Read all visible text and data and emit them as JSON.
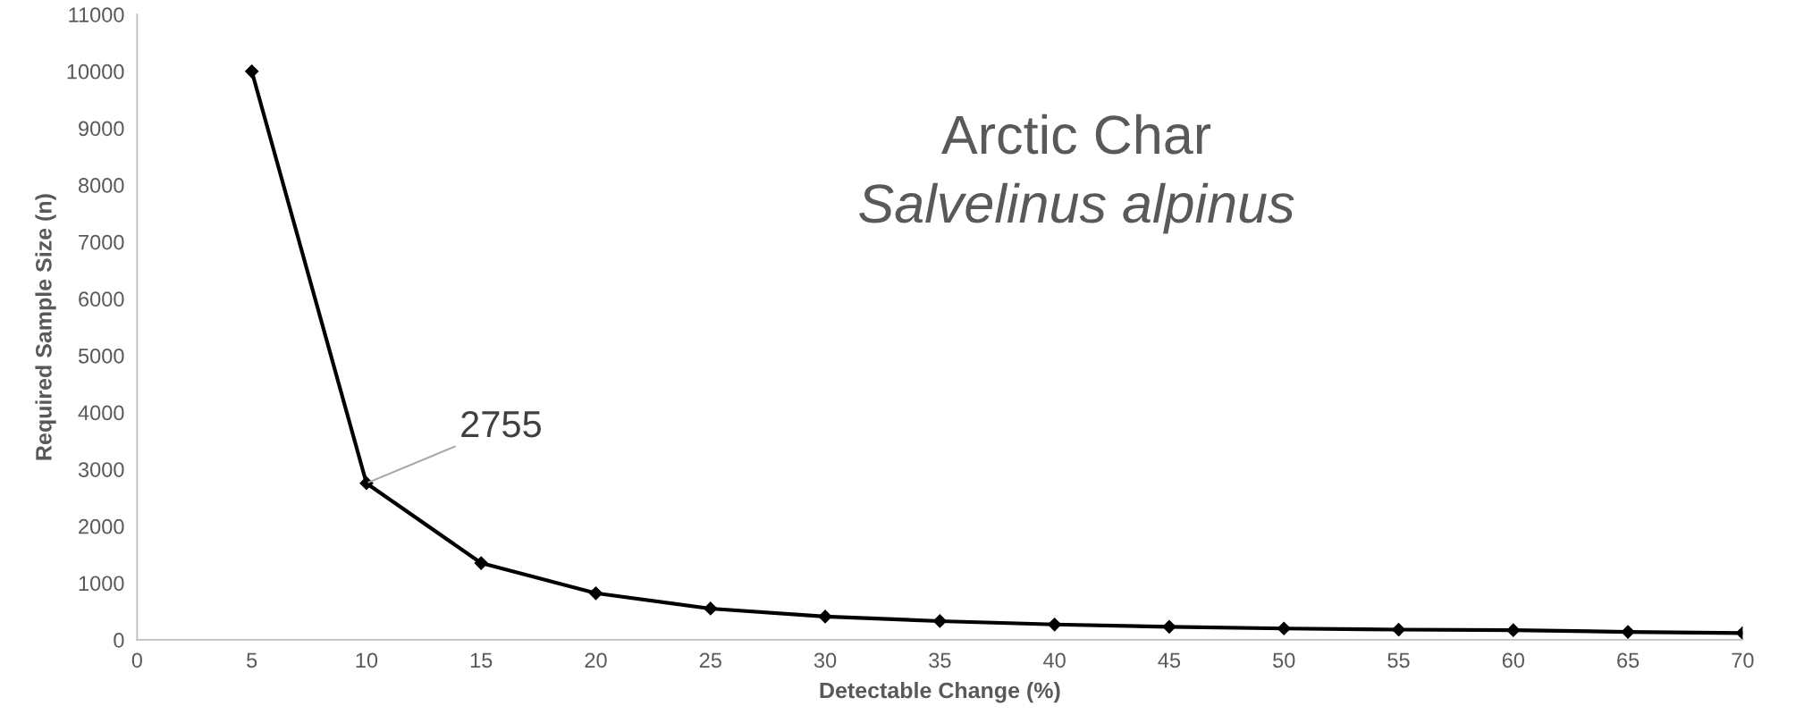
{
  "chart_data": {
    "type": "line",
    "title": "Arctic Char",
    "subtitle": "Salvelinus alpinus",
    "xlabel": "Detectable Change (%)",
    "ylabel": "Required Sample Size (n)",
    "x": [
      5,
      10,
      15,
      20,
      25,
      30,
      35,
      40,
      45,
      50,
      55,
      60,
      65,
      70
    ],
    "series": [
      {
        "color": "#000000",
        "values": [
          10000,
          2755,
          1350,
          820,
          550,
          410,
          330,
          270,
          230,
          200,
          180,
          170,
          140,
          120
        ]
      }
    ],
    "annotations": [
      {
        "text": "2755",
        "x": 10,
        "y": 2755
      }
    ],
    "xlim": [
      0,
      70
    ],
    "xticks": [
      0,
      5,
      10,
      15,
      20,
      25,
      30,
      35,
      40,
      45,
      50,
      55,
      60,
      65,
      70
    ],
    "ylim": [
      0,
      11000
    ],
    "yticks": [
      0,
      1000,
      2000,
      3000,
      4000,
      5000,
      6000,
      7000,
      8000,
      9000,
      10000,
      11000
    ],
    "grid": false,
    "legend": false,
    "marker": "diamond",
    "line_style": "solid"
  }
}
